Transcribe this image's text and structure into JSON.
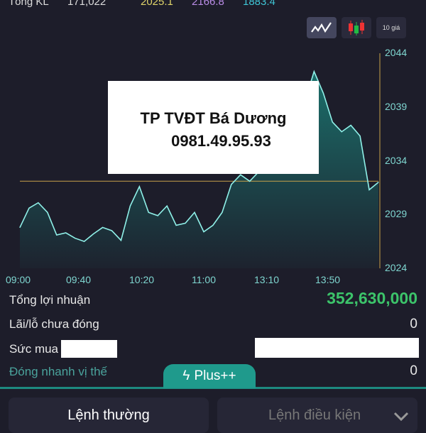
{
  "header": {
    "label": "Tổng KL",
    "volume": "171,022",
    "price1": "2025.1",
    "price2": "2166.8",
    "price3": "1883.4",
    "colors": {
      "price1": "#e0d46a",
      "price2": "#b98ce6",
      "price3": "#3fc6d6"
    }
  },
  "toolbar": {
    "line_icon": "line-chart-icon",
    "candle_icon": "candlestick-icon",
    "ten_price_label": "10 giá"
  },
  "watermark": {
    "line1": "TP TVĐT Bá Dương",
    "line2": "0981.49.95.93"
  },
  "chart_data": {
    "type": "area",
    "y_ticks": [
      "2044",
      "2039",
      "2034",
      "2029",
      "2024"
    ],
    "ylim": [
      2024,
      2044
    ],
    "x_ticks": [
      "09:00",
      "09:40",
      "10:20",
      "11:00",
      "13:10",
      "13:50"
    ],
    "reference_line": 2032.1,
    "values": [
      2027.8,
      2029.6,
      2030.1,
      2029.2,
      2027.1,
      2027.3,
      2026.8,
      2026.5,
      2027.2,
      2027.8,
      2027.5,
      2026.6,
      2029.8,
      2031.6,
      2029.2,
      2028.9,
      2029.8,
      2028.0,
      2028.2,
      2029.2,
      2027.4,
      2028.0,
      2029.2,
      2031.8,
      2032.7,
      2032.1,
      2033,
      2034.5,
      2035.5,
      2036.5,
      2037.5,
      2039.5,
      2042.3,
      2040.3,
      2037.6,
      2036.7,
      2037.3,
      2036.3,
      2031.3,
      2032.0
    ],
    "line_color": "#8ff0e8",
    "fill_color": "#1a8a80"
  },
  "summary": {
    "profit_label": "Tổng lợi nhuận",
    "profit_value": "352,630,000",
    "profit_color": "#3cc46a",
    "unrealized_label": "Lãi/lỗ chưa đóng",
    "unrealized_value": "0",
    "buying_power_label": "Sức mua",
    "quick_close_label": "Đóng nhanh vị thế",
    "quick_close_value": "0"
  },
  "plus_tab": {
    "label": "Plus++",
    "icon": "lightning-icon"
  },
  "tabs": {
    "normal": "Lệnh thường",
    "conditional": "Lệnh điều kiện"
  }
}
